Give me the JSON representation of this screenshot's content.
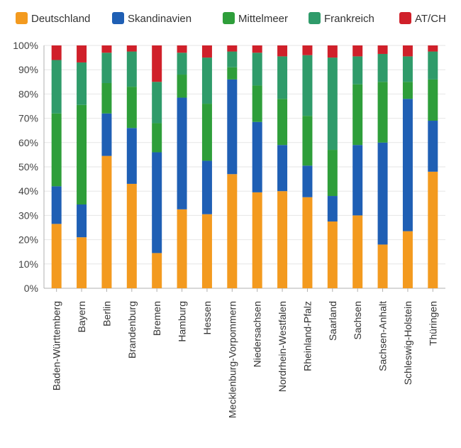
{
  "chart_data": {
    "type": "bar",
    "stacked": true,
    "percent": true,
    "categories": [
      "Baden-Württemberg",
      "Bayern",
      "Berlin",
      "Brandenburg",
      "Bremen",
      "Hamburg",
      "Hessen",
      "Mecklenburg-Vorpommern",
      "Niedersachsen",
      "Nordrhein-Westfalen",
      "Rheinland-Pfalz",
      "Saarland",
      "Sachsen",
      "Sachsen-Anhalt",
      "Schleswig-Holstein",
      "Thüringen"
    ],
    "series": [
      {
        "name": "Deutschland",
        "color": "#f39a1f",
        "values": [
          26.5,
          21,
          54.5,
          43,
          14.5,
          32.5,
          30.5,
          47,
          39.5,
          40,
          37.5,
          27.5,
          30,
          18,
          23.5,
          48
        ]
      },
      {
        "name": "Skandinavien",
        "color": "#1f5fb4",
        "values": [
          15.5,
          13.5,
          17.5,
          23,
          41.5,
          46,
          22,
          39,
          29,
          19,
          13,
          10.5,
          29,
          42,
          54.5,
          21
        ]
      },
      {
        "name": "Mittelmeer",
        "color": "#2e9e3a",
        "values": [
          30,
          41,
          12.5,
          17,
          12,
          9.5,
          23.5,
          5,
          15,
          19,
          20.5,
          19,
          25,
          25,
          7,
          17
        ]
      },
      {
        "name": "Frankreich",
        "color": "#2f9b6a",
        "values": [
          22,
          17.5,
          12.5,
          14.5,
          17,
          9,
          19,
          6.5,
          13.5,
          17.5,
          25,
          38,
          11.5,
          11.5,
          10.5,
          11.5
        ]
      },
      {
        "name": "AT/CH",
        "color": "#d0202a",
        "values": [
          6,
          7,
          3,
          2.5,
          15,
          3,
          5,
          2.5,
          3,
          4.5,
          4,
          5,
          4.5,
          3.5,
          4.5,
          2.5
        ]
      }
    ],
    "y_ticks": [
      "0%",
      "10%",
      "20%",
      "30%",
      "40%",
      "50%",
      "60%",
      "70%",
      "80%",
      "90%",
      "100%"
    ],
    "ylim": [
      0,
      100
    ],
    "grid": true,
    "legend_position": "top"
  }
}
